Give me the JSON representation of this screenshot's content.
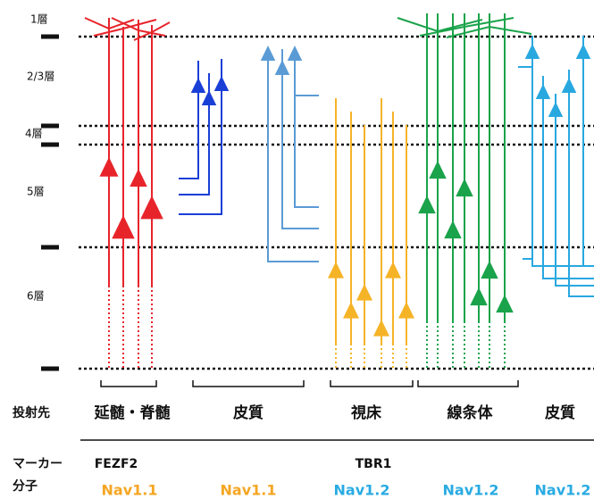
{
  "layers": [
    "1層",
    "2/3層",
    "4層",
    "5層",
    "6層"
  ],
  "projection": {
    "label": "投射先",
    "targets": [
      "延髄・脊髄",
      "皮質",
      "視床",
      "線条体",
      "皮質"
    ]
  },
  "marker": {
    "label_1": "マーカー",
    "label_2": "分子",
    "genes": [
      "FEZF2",
      "TBR1"
    ],
    "channels": [
      "Nav1.1",
      "Nav1.1",
      "Nav1.2",
      "Nav1.2",
      "Nav1.2"
    ]
  }
}
